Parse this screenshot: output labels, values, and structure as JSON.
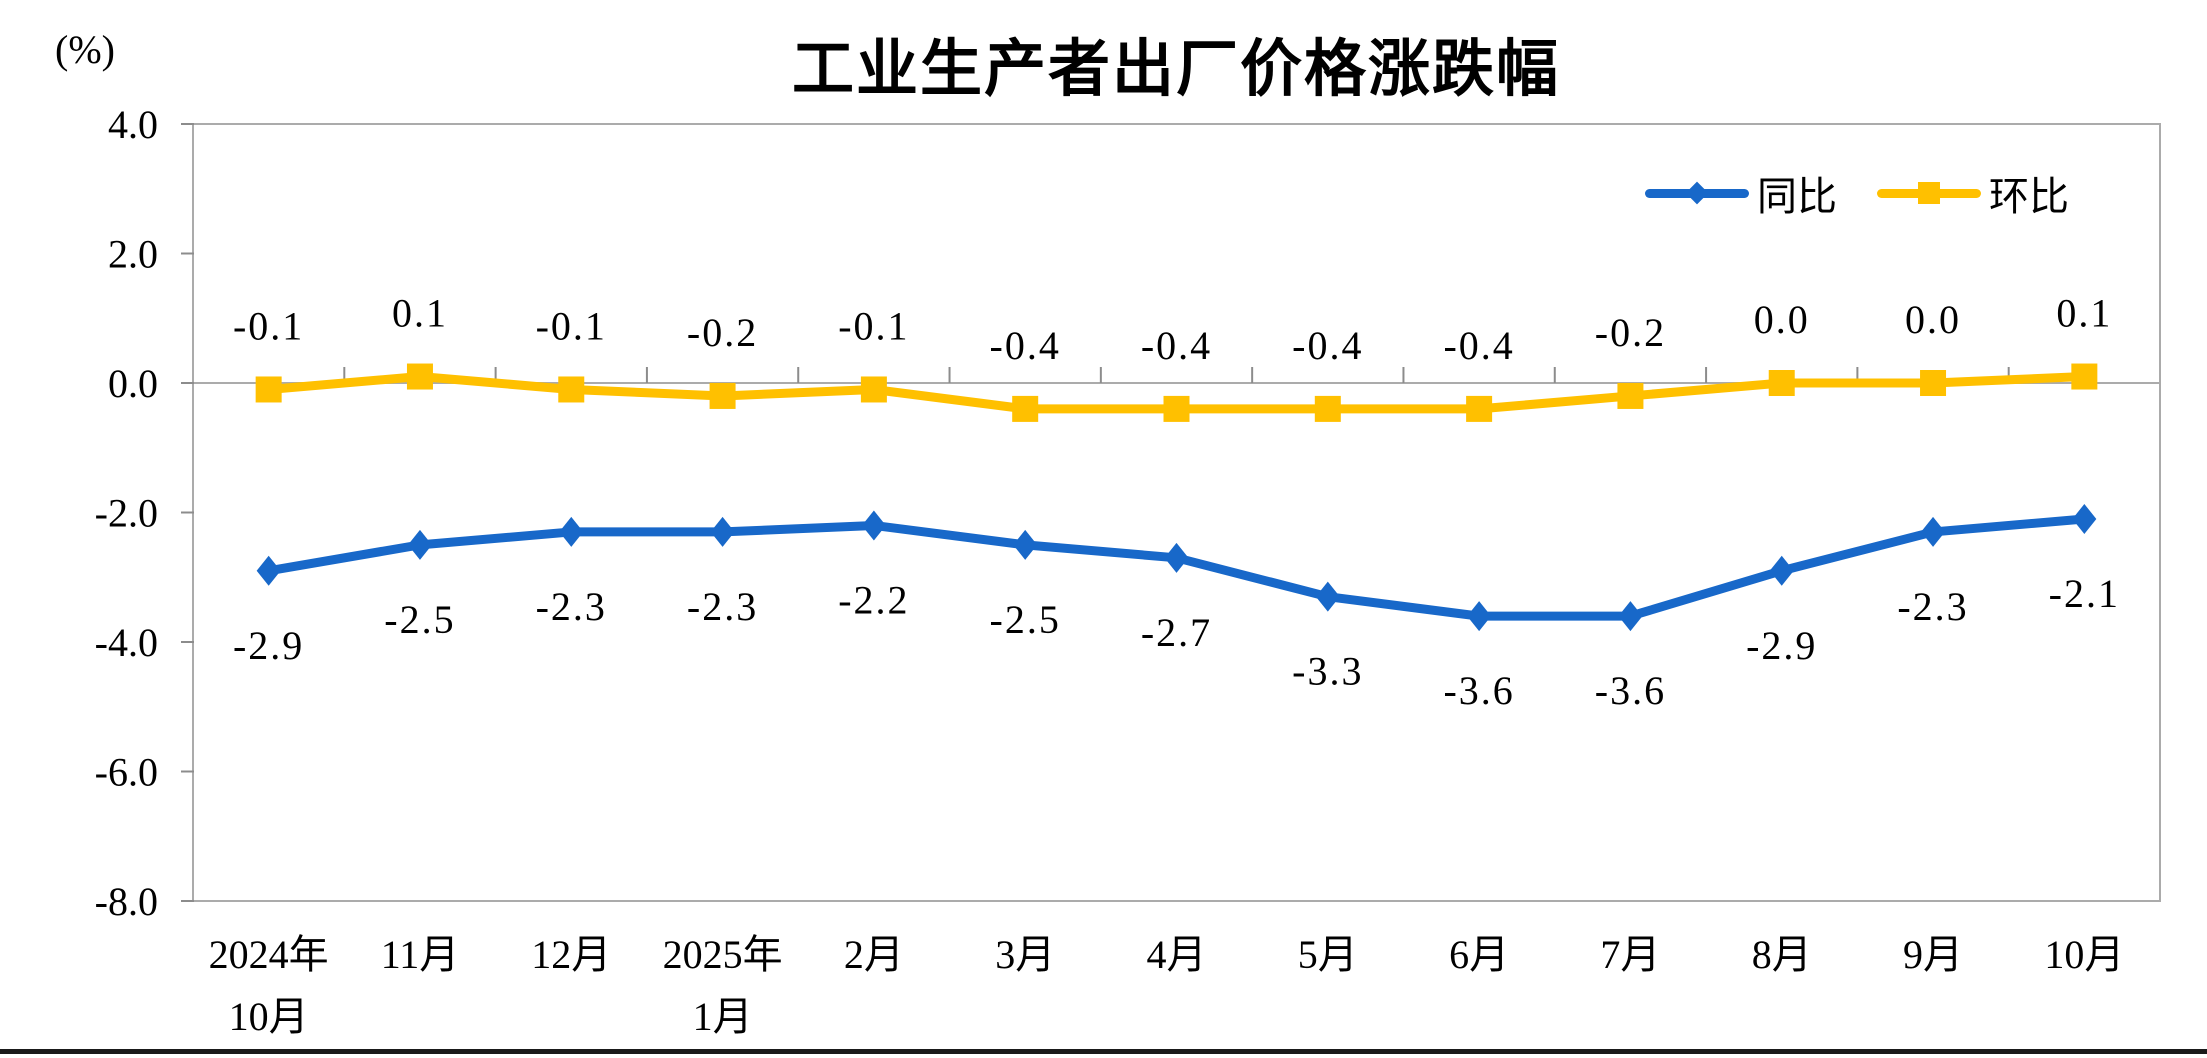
{
  "chart_data": {
    "type": "line",
    "title": "工业生产者出厂价格涨跌幅",
    "unit_label": "(%)",
    "categories": [
      "2024年10月",
      "11月",
      "12月",
      "2025年1月",
      "2月",
      "3月",
      "4月",
      "5月",
      "6月",
      "7月",
      "8月",
      "9月",
      "10月"
    ],
    "x_tick_lines": [
      [
        "2024年",
        "10月"
      ],
      [
        "11月"
      ],
      [
        "12月"
      ],
      [
        "2025年",
        "1月"
      ],
      [
        "2月"
      ],
      [
        "3月"
      ],
      [
        "4月"
      ],
      [
        "5月"
      ],
      [
        "6月"
      ],
      [
        "7月"
      ],
      [
        "8月"
      ],
      [
        "9月"
      ],
      [
        "10月"
      ]
    ],
    "series": [
      {
        "name": "同比",
        "color": "#1868C9",
        "marker": "diamond",
        "values": [
          -2.9,
          -2.5,
          -2.3,
          -2.3,
          -2.2,
          -2.5,
          -2.7,
          -3.3,
          -3.6,
          -3.6,
          -2.9,
          -2.3,
          -2.1
        ],
        "labels": [
          "-2.9",
          "-2.5",
          "-2.3",
          "-2.3",
          "-2.2",
          "-2.5",
          "-2.7",
          "-3.3",
          "-3.6",
          "-3.6",
          "-2.9",
          "-2.3",
          "-2.1"
        ]
      },
      {
        "name": "环比",
        "color": "#FFC000",
        "marker": "square",
        "values": [
          -0.1,
          0.1,
          -0.1,
          -0.2,
          -0.1,
          -0.4,
          -0.4,
          -0.4,
          -0.4,
          -0.2,
          0.0,
          0.0,
          0.1
        ],
        "labels": [
          "-0.1",
          "0.1",
          "-0.1",
          "-0.2",
          "-0.1",
          "-0.4",
          "-0.4",
          "-0.4",
          "-0.4",
          "-0.2",
          "0.0",
          "0.0",
          "0.1"
        ]
      }
    ],
    "y_axis": {
      "tick_labels": [
        "4.0",
        "2.0",
        "0.0",
        "-2.0",
        "-4.0",
        "-6.0",
        "-8.0"
      ],
      "tick_values": [
        4,
        2,
        0,
        -2,
        -4,
        -6,
        -8
      ],
      "min": -8,
      "max": 4,
      "grid": false,
      "zero_line": true
    },
    "legend_position": "top-right",
    "colors": {
      "plot_border": "#ABABAB",
      "zero_line": "#ABABAB",
      "tick_mark": "#8C8C8C",
      "label_text": "#000000",
      "bottom_bar": "#1A1A1A"
    }
  }
}
